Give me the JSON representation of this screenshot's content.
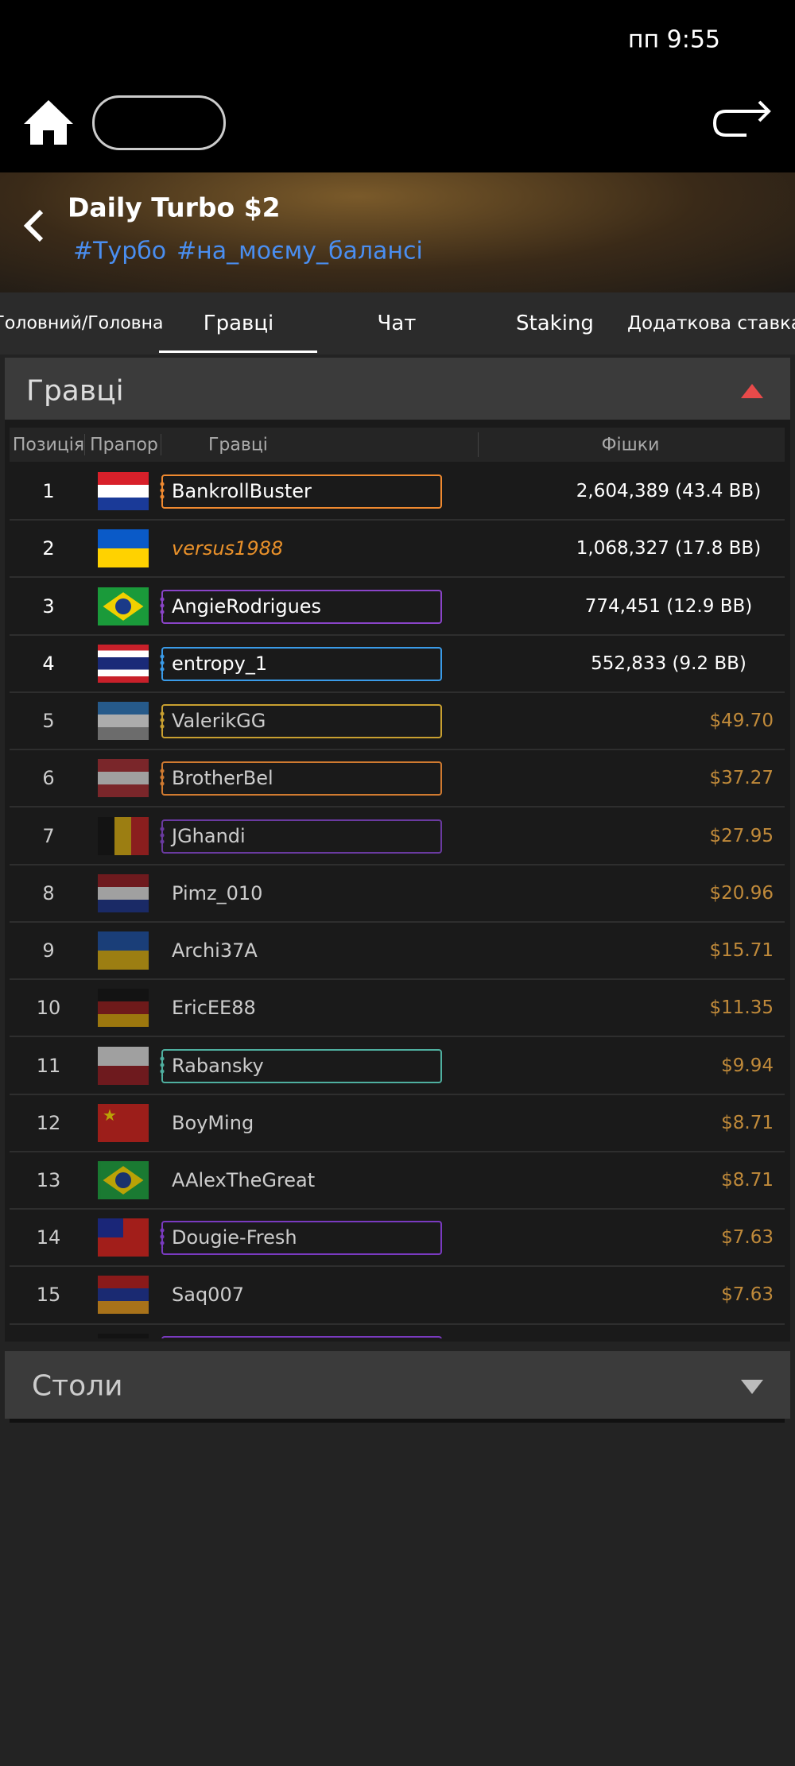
{
  "status_bar": {
    "time": "пп 9:55"
  },
  "header": {
    "title": "Daily Turbo $2",
    "tags": [
      "#Турбо",
      "#на_моєму_балансі"
    ]
  },
  "tabs": [
    "Головний/Головна",
    "Гравці",
    "Чат",
    "Staking",
    "Додаткова ставка"
  ],
  "players_section": {
    "title": "Гравці",
    "columns": [
      "Позиція",
      "Прапор",
      "Гравці",
      "Фішки"
    ],
    "rows": [
      {
        "position": 1,
        "name": "BankrollBuster",
        "chips": "2,604,389 (43.4 BB)"
      },
      {
        "position": 2,
        "name": "versus1988",
        "chips": "1,068,327 (17.8 BB)"
      },
      {
        "position": 3,
        "name": "AngieRodrigues",
        "chips": "774,451 (12.9 BB)"
      },
      {
        "position": 4,
        "name": "entropy_1",
        "chips": "552,833 (9.2 BB)"
      },
      {
        "position": 5,
        "name": "ValerikGG",
        "chips": "$49.70"
      },
      {
        "position": 6,
        "name": "BrotherBel",
        "chips": "$37.27"
      },
      {
        "position": 7,
        "name": "JGhandi",
        "chips": "$27.95"
      },
      {
        "position": 8,
        "name": "Pimz_010",
        "chips": "$20.96"
      },
      {
        "position": 9,
        "name": "Archi37A",
        "chips": "$15.71"
      },
      {
        "position": 10,
        "name": "EricEE88",
        "chips": "$11.35"
      },
      {
        "position": 11,
        "name": "Rabansky",
        "chips": "$9.94"
      },
      {
        "position": 12,
        "name": "BoyMing",
        "chips": "$8.71"
      },
      {
        "position": 13,
        "name": "AAlexTheGreat",
        "chips": "$8.71"
      },
      {
        "position": 14,
        "name": "Dougie-Fresh",
        "chips": "$7.63"
      },
      {
        "position": 15,
        "name": "Saq007",
        "chips": "$7.63"
      }
    ]
  },
  "tables_section": {
    "title": "Столи"
  }
}
